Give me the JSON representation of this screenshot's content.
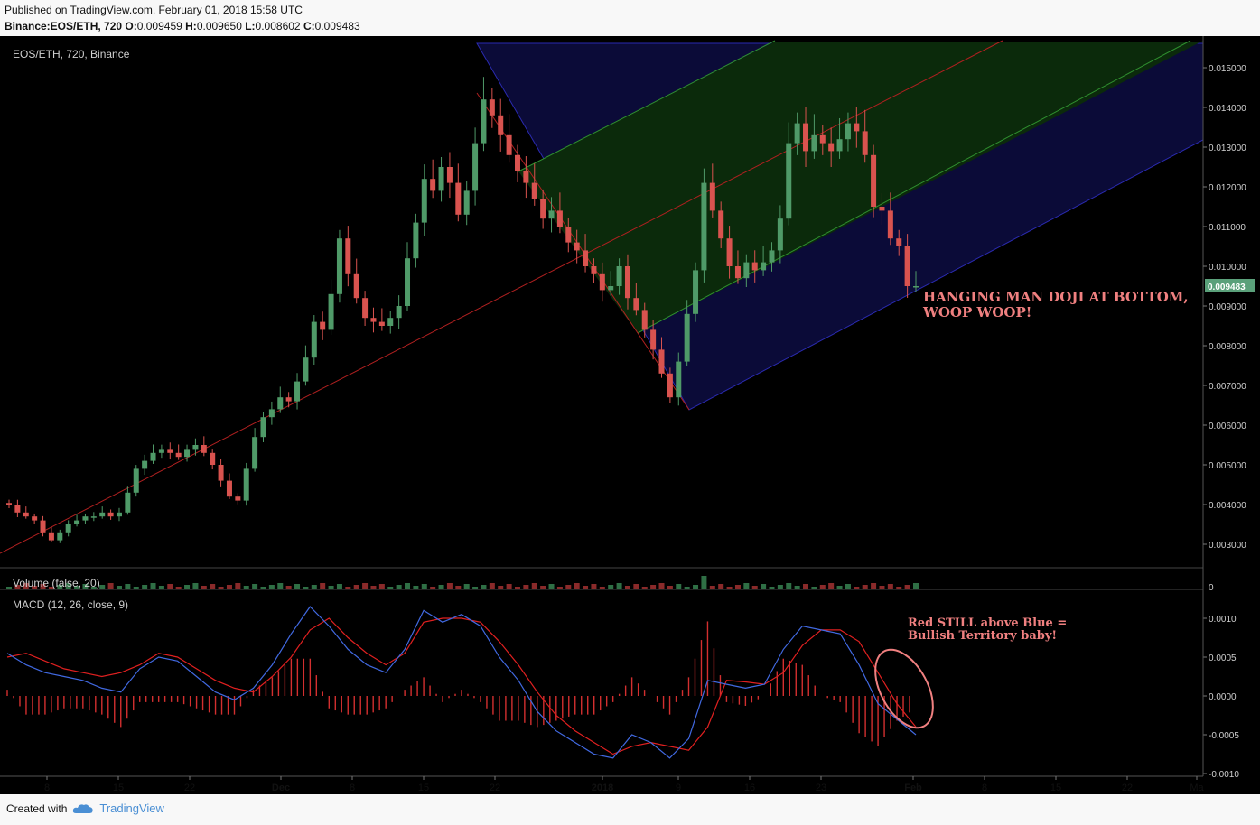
{
  "header": {
    "published": "Published on TradingView.com, February 01, 2018 15:58 UTC",
    "symbol": "Binance:EOS/ETH, 720",
    "o_label": "O:",
    "o": "0.009459",
    "h_label": "H:",
    "h": "0.009650",
    "l_label": "L:",
    "l": "0.008602",
    "c_label": "C:",
    "c": "0.009483"
  },
  "footer": {
    "created": "Created with",
    "brand": "TradingView"
  },
  "colors": {
    "background": "#000000",
    "up": "#4f9a68",
    "down": "#d9534f",
    "macd_line": "#4169e1",
    "signal_line": "#e02020",
    "hist": "#d32f2f",
    "pitchfork_median": "#b02020",
    "zone_outer": "#0b0b38",
    "zone_inner": "#0b2a0b",
    "price_tag": "#5aa07a",
    "annotation": "#f08080"
  },
  "chart_data": [
    {
      "type": "candlestick",
      "title": "EOS/ETH, 720, Binance",
      "y_range": [
        0.0023,
        0.0157
      ],
      "y_ticks": [
        "0.015000",
        "0.014000",
        "0.013000",
        "0.012000",
        "0.011000",
        "0.010000",
        "0.009000",
        "0.008000",
        "0.007000",
        "0.006000",
        "0.005000",
        "0.004000",
        "0.003000"
      ],
      "x_tick_labels": [
        "8",
        "15",
        "22",
        "Dec",
        "8",
        "15",
        "22",
        "2018",
        "9",
        "16",
        "23",
        "Feb",
        "8",
        "15",
        "22",
        "Ma"
      ],
      "last_price_tag": "0.009483",
      "closes": [
        0.004,
        0.0038,
        0.0037,
        0.0036,
        0.0033,
        0.0031,
        0.0033,
        0.0035,
        0.0036,
        0.0037,
        0.0037,
        0.0038,
        0.0037,
        0.0038,
        0.0043,
        0.0049,
        0.0051,
        0.0053,
        0.0054,
        0.0053,
        0.0052,
        0.0054,
        0.0055,
        0.0053,
        0.005,
        0.0046,
        0.0042,
        0.0041,
        0.0049,
        0.0057,
        0.0062,
        0.0064,
        0.0067,
        0.0066,
        0.0071,
        0.0077,
        0.0086,
        0.0084,
        0.0093,
        0.0107,
        0.0098,
        0.0092,
        0.0087,
        0.0086,
        0.0085,
        0.0087,
        0.009,
        0.0102,
        0.0111,
        0.0122,
        0.0119,
        0.0125,
        0.0121,
        0.0113,
        0.0119,
        0.0131,
        0.0142,
        0.0138,
        0.0133,
        0.0128,
        0.0124,
        0.0121,
        0.0117,
        0.0112,
        0.0114,
        0.011,
        0.0106,
        0.0104,
        0.01,
        0.0098,
        0.0094,
        0.0095,
        0.01,
        0.0092,
        0.0089,
        0.0084,
        0.0079,
        0.0073,
        0.0067,
        0.0076,
        0.0088,
        0.0099,
        0.0121,
        0.0114,
        0.0107,
        0.01,
        0.0097,
        0.0101,
        0.0099,
        0.0101,
        0.0104,
        0.0112,
        0.0131,
        0.0136,
        0.0129,
        0.0133,
        0.0131,
        0.0129,
        0.0132,
        0.0136,
        0.0134,
        0.0128,
        0.0115,
        0.0114,
        0.0107,
        0.0105,
        0.0095,
        0.0095
      ]
    },
    {
      "type": "bar",
      "title": "Volume (false, 20)",
      "y_ticks": [
        "0"
      ]
    },
    {
      "type": "line",
      "title": "MACD (12, 26, close, 9)",
      "y_range": [
        -0.001,
        0.0012
      ],
      "y_ticks": [
        "0.0010",
        "0.0005",
        "0.0000",
        "-0.0005",
        "-0.0010"
      ],
      "series": [
        {
          "values": [
            0.00055,
            0.0004,
            0.0003,
            0.00025,
            0.0002,
            0.0001,
            5e-05,
            0.00035,
            0.0005,
            0.00045,
            0.00025,
            5e-05,
            -5e-05,
            0.0001,
            0.0004,
            0.0008,
            0.00115,
            0.0009,
            0.0006,
            0.0004,
            0.0003,
            0.0006,
            0.0011,
            0.00095,
            0.00105,
            0.0009,
            0.0005,
            0.0002,
            -0.0002,
            -0.00045,
            -0.0006,
            -0.00075,
            -0.0008,
            -0.0005,
            -0.0006,
            -0.0008,
            -0.00055,
            0.0002,
            0.00015,
            0.0001,
            0.00015,
            0.0006,
            0.0009,
            0.00085,
            0.0008,
            0.0004,
            -0.0001,
            -0.0003,
            -0.0005
          ]
        },
        {
          "values": [
            0.0005,
            0.00055,
            0.00045,
            0.00035,
            0.0003,
            0.00025,
            0.0003,
            0.0004,
            0.00055,
            0.0005,
            0.00035,
            0.0002,
            0.0001,
            5e-05,
            0.00025,
            0.0005,
            0.00085,
            0.001,
            0.00075,
            0.00055,
            0.0004,
            0.00055,
            0.00095,
            0.001,
            0.001,
            0.00095,
            0.0007,
            0.0004,
            5e-05,
            -0.00025,
            -0.00045,
            -0.0006,
            -0.00075,
            -0.00065,
            -0.0006,
            -0.00065,
            -0.0007,
            -0.0004,
            0.0002,
            0.00018,
            0.00015,
            0.0003,
            0.00065,
            0.00085,
            0.00085,
            0.0007,
            0.0003,
            -0.0001,
            -0.0004
          ]
        }
      ]
    }
  ],
  "annotations": {
    "hanging_man": [
      "HANGING MAN DOJI AT BOTTOM,",
      "WOOP WOOP!"
    ],
    "macd_note": [
      "Red STILL above Blue =",
      "Bullish Territory baby!"
    ]
  }
}
